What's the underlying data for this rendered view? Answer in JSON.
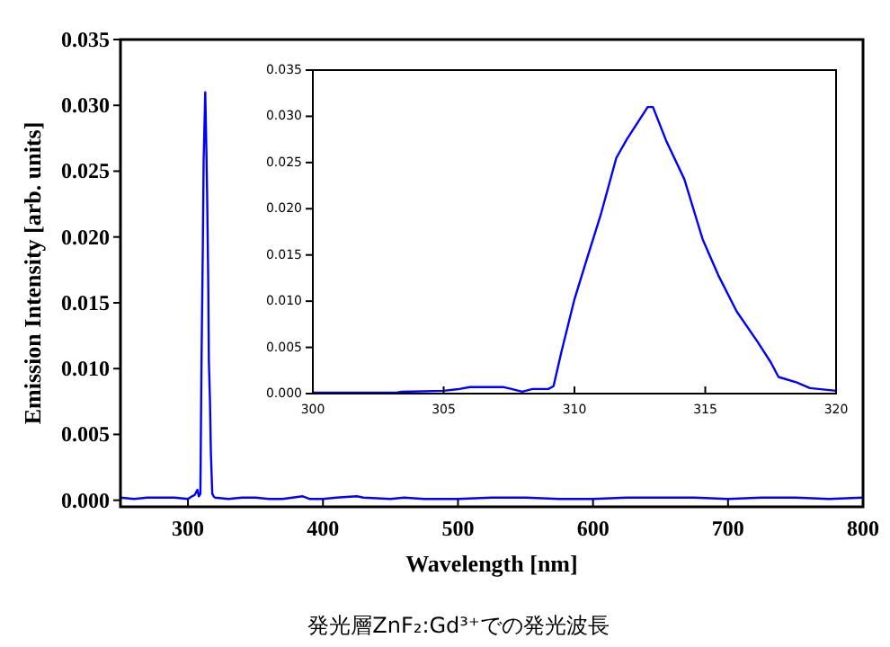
{
  "chart_data": [
    {
      "type": "line",
      "xlabel": "Wavelength [nm]",
      "ylabel": "Emission Intensity [arb. units]",
      "color": "#0000ff",
      "x": [
        250,
        260,
        270,
        280,
        290,
        300,
        303,
        305,
        307,
        308,
        309.2,
        310,
        311,
        311.6,
        312.8,
        313.5,
        314.2,
        315,
        315.5,
        316.3,
        317,
        317.5,
        318,
        319,
        320,
        330,
        340,
        350,
        360,
        370,
        385,
        390,
        400,
        410,
        425,
        430,
        450,
        460,
        475,
        500,
        525,
        550,
        575,
        600,
        625,
        650,
        675,
        700,
        725,
        750,
        775,
        800
      ],
      "values": [
        0.0002,
        0.0001,
        0.0002,
        0.0002,
        0.0002,
        0.0001,
        0.0003,
        0.0004,
        0.0008,
        0.0003,
        0.0005,
        0.0102,
        0.0193,
        0.0258,
        0.031,
        0.0274,
        0.0232,
        0.0167,
        0.0105,
        0.0075,
        0.0035,
        0.002,
        0.0005,
        0.0003,
        0.0002,
        0.0001,
        0.0002,
        0.0002,
        0.0001,
        0.0001,
        0.0003,
        0.0001,
        0.0001,
        0.0002,
        0.0003,
        0.0002,
        0.0001,
        0.0002,
        0.0001,
        0.0001,
        0.0002,
        0.0002,
        0.0001,
        0.0001,
        0.0002,
        0.0002,
        0.0002,
        0.0001,
        0.0002,
        0.0002,
        0.0001,
        0.0002
      ],
      "xlim": [
        250,
        800
      ],
      "ylim": [
        -0.0005,
        0.035
      ],
      "xticks": [
        300,
        400,
        500,
        600,
        700,
        800
      ],
      "yticks": [
        {
          "value": 0,
          "label": "0.000"
        },
        {
          "value": 0.005,
          "label": "0.005"
        },
        {
          "value": 0.01,
          "label": "0.010"
        },
        {
          "value": 0.015,
          "label": "0.015"
        },
        {
          "value": 0.02,
          "label": "0.020"
        },
        {
          "value": 0.025,
          "label": "0.025"
        },
        {
          "value": 0.03,
          "label": "0.030"
        },
        {
          "value": 0.035,
          "label": "0.035"
        }
      ],
      "annotations": [
        "発光層ZnF₂:Gd³⁺での発光波長"
      ]
    },
    {
      "type": "line",
      "color": "#0000ff",
      "x": [
        300,
        303.2,
        303.4,
        305,
        305.6,
        306,
        307.3,
        307.6,
        308,
        308.4,
        309,
        309.2,
        309.5,
        310,
        310.5,
        311,
        311.6,
        312,
        312.8,
        313,
        313.5,
        314.2,
        314.9,
        315.5,
        316.2,
        317,
        317.5,
        317.8,
        318.5,
        319,
        320
      ],
      "values": [
        0.0001,
        0.0001,
        0.0002,
        0.0003,
        0.0005,
        0.0007,
        0.0007,
        0.0005,
        0.0002,
        0.0005,
        0.0005,
        0.0008,
        0.0045,
        0.0102,
        0.0148,
        0.0193,
        0.0255,
        0.0275,
        0.031,
        0.031,
        0.0274,
        0.0232,
        0.0167,
        0.0128,
        0.0089,
        0.0056,
        0.0034,
        0.0018,
        0.0012,
        0.0006,
        0.0003
      ],
      "xlim": [
        300,
        320
      ],
      "ylim": [
        0,
        0.035
      ],
      "xticks": [
        300,
        305,
        310,
        315,
        320
      ],
      "yticks": [
        {
          "value": 0,
          "label": "0.000"
        },
        {
          "value": 0.005,
          "label": "0.005"
        },
        {
          "value": 0.01,
          "label": "0.010"
        },
        {
          "value": 0.015,
          "label": "0.015"
        },
        {
          "value": 0.02,
          "label": "0.020"
        },
        {
          "value": 0.025,
          "label": "0.025"
        },
        {
          "value": 0.03,
          "label": "0.030"
        },
        {
          "value": 0.035,
          "label": "0.035"
        }
      ]
    }
  ]
}
